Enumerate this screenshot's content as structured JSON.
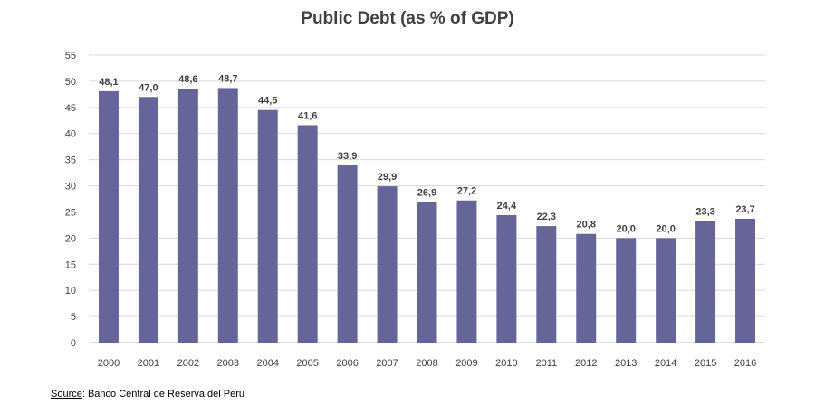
{
  "chart_data": {
    "type": "bar",
    "title": "Public Debt (as % of GDP)",
    "categories": [
      "2000",
      "2001",
      "2002",
      "2003",
      "2004",
      "2005",
      "2006",
      "2007",
      "2008",
      "2009",
      "2010",
      "2011",
      "2012",
      "2013",
      "2014",
      "2015",
      "2016"
    ],
    "values": [
      48.1,
      47.0,
      48.6,
      48.7,
      44.5,
      41.6,
      33.9,
      29.9,
      26.9,
      27.2,
      24.4,
      22.3,
      20.8,
      20.0,
      20.0,
      23.3,
      23.7
    ],
    "data_labels": [
      "48,1",
      "47,0",
      "48,6",
      "48,7",
      "44,5",
      "41,6",
      "33,9",
      "29,9",
      "26,9",
      "27,2",
      "24,4",
      "22,3",
      "20,8",
      "20,0",
      "20,0",
      "23,3",
      "23,7"
    ],
    "ylim": [
      0,
      55
    ],
    "yticks": [
      "0",
      "5",
      "10",
      "15",
      "20",
      "25",
      "30",
      "35",
      "40",
      "45",
      "50",
      "55"
    ],
    "grid": true,
    "legend": "none",
    "bar_color": "#65659a"
  },
  "source": {
    "label": "Source",
    "text": ": Banco Central de Reserva del Peru"
  }
}
